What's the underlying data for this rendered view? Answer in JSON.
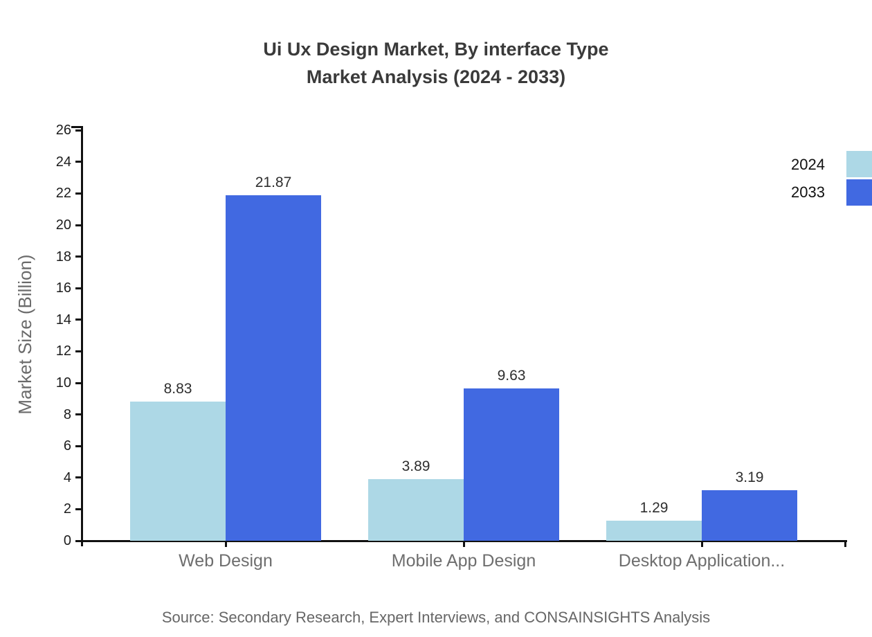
{
  "title": {
    "line1": "Ui Ux Design Market, By interface Type",
    "line2": "Market Analysis (2024 - 2033)"
  },
  "source_note": "Source: Secondary Research, Expert Interviews, and CONSAINSIGHTS Analysis",
  "chart_data": {
    "type": "bar",
    "title": "Ui Ux Design Market, By interface Type Market Analysis (2024 - 2033)",
    "categories": [
      "Web Design",
      "Mobile App Design",
      "Desktop Application..."
    ],
    "series": [
      {
        "name": "2024",
        "color": "#ADD8E6",
        "values": [
          8.83,
          3.89,
          1.29
        ]
      },
      {
        "name": "2033",
        "color": "#4169E1",
        "values": [
          21.87,
          9.63,
          3.19
        ]
      }
    ],
    "xlabel": "",
    "ylabel": "Market Size (Billion)",
    "ylim": [
      0,
      26
    ],
    "ytick_step": 2,
    "grid": false,
    "legend_position": "right",
    "value_label_decimals": 2,
    "axis_color": "#111111"
  }
}
